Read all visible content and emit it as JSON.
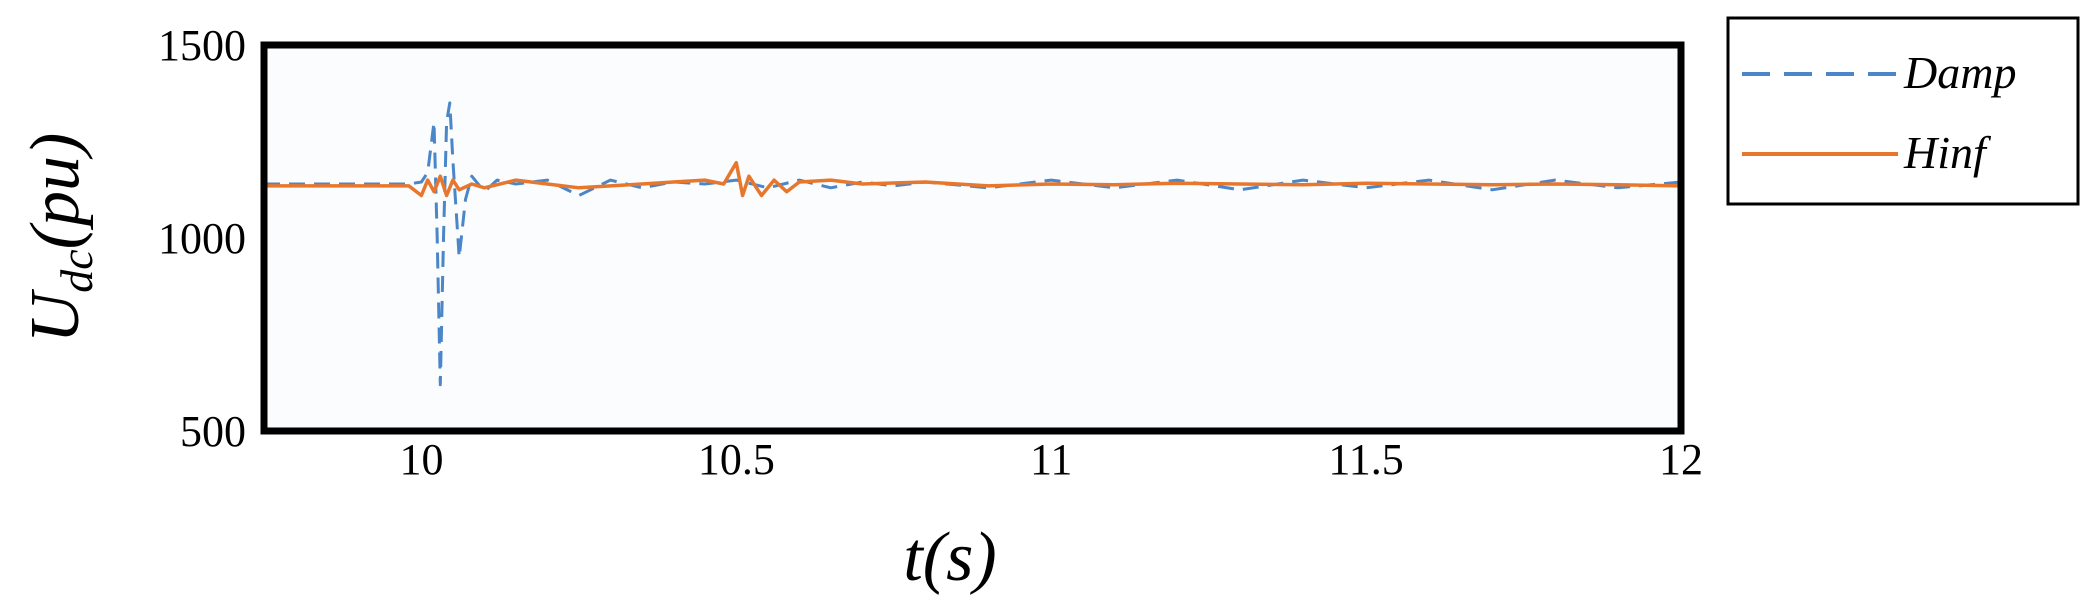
{
  "chart_data": {
    "type": "line",
    "title": "",
    "xlabel": "t(s)",
    "ylabel": {
      "main": "U",
      "sub": "dc",
      "rest": "(pu)"
    },
    "xlim": [
      9.75,
      12
    ],
    "ylim": [
      500,
      1500
    ],
    "xticks": [
      10,
      10.5,
      11,
      11.5,
      12
    ],
    "xtick_labels": [
      "10",
      "10.5",
      "11",
      "11.5",
      "12"
    ],
    "yticks": [
      500,
      1000,
      1500
    ],
    "ytick_labels": [
      "500",
      "1000",
      "1500"
    ],
    "grid": false,
    "legend_position": "outside-right-top",
    "series": [
      {
        "name": "Damp",
        "color": "#4a86c8",
        "style": "dashed",
        "x": [
          9.75,
          9.9,
          9.98,
          10.0,
          10.01,
          10.02,
          10.025,
          10.03,
          10.035,
          10.04,
          10.045,
          10.05,
          10.06,
          10.07,
          10.08,
          10.1,
          10.12,
          10.15,
          10.2,
          10.25,
          10.3,
          10.35,
          10.4,
          10.45,
          10.5,
          10.55,
          10.6,
          10.65,
          10.7,
          10.75,
          10.8,
          10.9,
          11.0,
          11.1,
          11.2,
          11.3,
          11.4,
          11.5,
          11.6,
          11.7,
          11.8,
          11.9,
          12.0
        ],
        "y": [
          1140,
          1140,
          1140,
          1145,
          1170,
          1300,
          1000,
          620,
          1000,
          1300,
          1350,
          1200,
          950,
          1100,
          1160,
          1120,
          1150,
          1140,
          1150,
          1110,
          1150,
          1130,
          1145,
          1140,
          1150,
          1130,
          1150,
          1130,
          1145,
          1135,
          1145,
          1130,
          1150,
          1130,
          1150,
          1125,
          1150,
          1130,
          1150,
          1125,
          1150,
          1130,
          1145
        ]
      },
      {
        "name": "Hinf",
        "color": "#e8772e",
        "style": "solid",
        "x": [
          9.75,
          9.9,
          9.98,
          10.0,
          10.01,
          10.02,
          10.03,
          10.04,
          10.05,
          10.06,
          10.08,
          10.1,
          10.15,
          10.2,
          10.25,
          10.3,
          10.35,
          10.4,
          10.45,
          10.48,
          10.5,
          10.51,
          10.52,
          10.54,
          10.56,
          10.58,
          10.6,
          10.65,
          10.7,
          10.8,
          10.9,
          11.0,
          11.1,
          11.2,
          11.3,
          11.4,
          11.5,
          11.6,
          11.7,
          11.8,
          11.9,
          12.0
        ],
        "y": [
          1135,
          1135,
          1135,
          1110,
          1150,
          1120,
          1160,
          1110,
          1150,
          1125,
          1140,
          1130,
          1150,
          1140,
          1130,
          1135,
          1140,
          1145,
          1150,
          1140,
          1195,
          1110,
          1160,
          1110,
          1150,
          1120,
          1145,
          1150,
          1140,
          1145,
          1135,
          1140,
          1138,
          1142,
          1140,
          1138,
          1142,
          1140,
          1138,
          1140,
          1138,
          1135
        ]
      }
    ]
  }
}
